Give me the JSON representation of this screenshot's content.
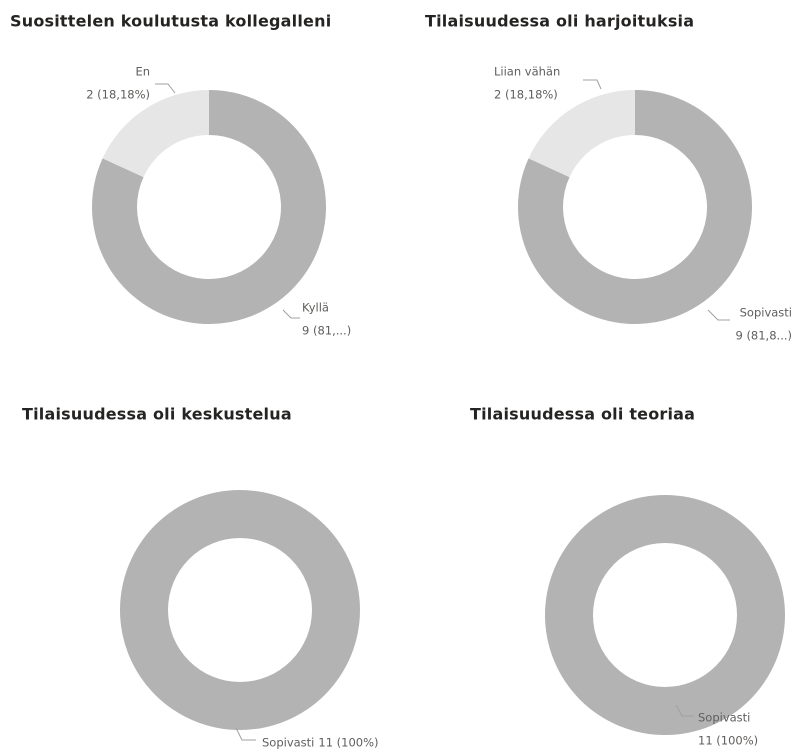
{
  "chart_data": [
    {
      "type": "pie",
      "title": "Suosittelen koulutusta kollegalleni",
      "categories": [
        "Kyllä",
        "En"
      ],
      "values": [
        9,
        2
      ],
      "value_labels": [
        "9 (81,...)",
        "2 (18,18%)"
      ],
      "colors": [
        "#b3b3b3",
        "#e6e6e6"
      ]
    },
    {
      "type": "pie",
      "title": "Tilaisuudessa oli harjoituksia",
      "categories": [
        "Sopivasti",
        "Liian vähän"
      ],
      "values": [
        9,
        2
      ],
      "value_labels": [
        "9 (81,8...)",
        "2 (18,18%)"
      ],
      "colors": [
        "#b3b3b3",
        "#e6e6e6"
      ]
    },
    {
      "type": "pie",
      "title": "Tilaisuudessa oli keskustelua",
      "categories": [
        "Sopivasti"
      ],
      "values": [
        11
      ],
      "value_labels": [
        "11 (100%)"
      ],
      "colors": [
        "#b3b3b3"
      ]
    },
    {
      "type": "pie",
      "title": "Tilaisuudessa oli teoriaa",
      "categories": [
        "Sopivasti"
      ],
      "values": [
        11
      ],
      "value_labels": [
        "11 (100%)"
      ],
      "colors": [
        "#b3b3b3"
      ]
    }
  ]
}
